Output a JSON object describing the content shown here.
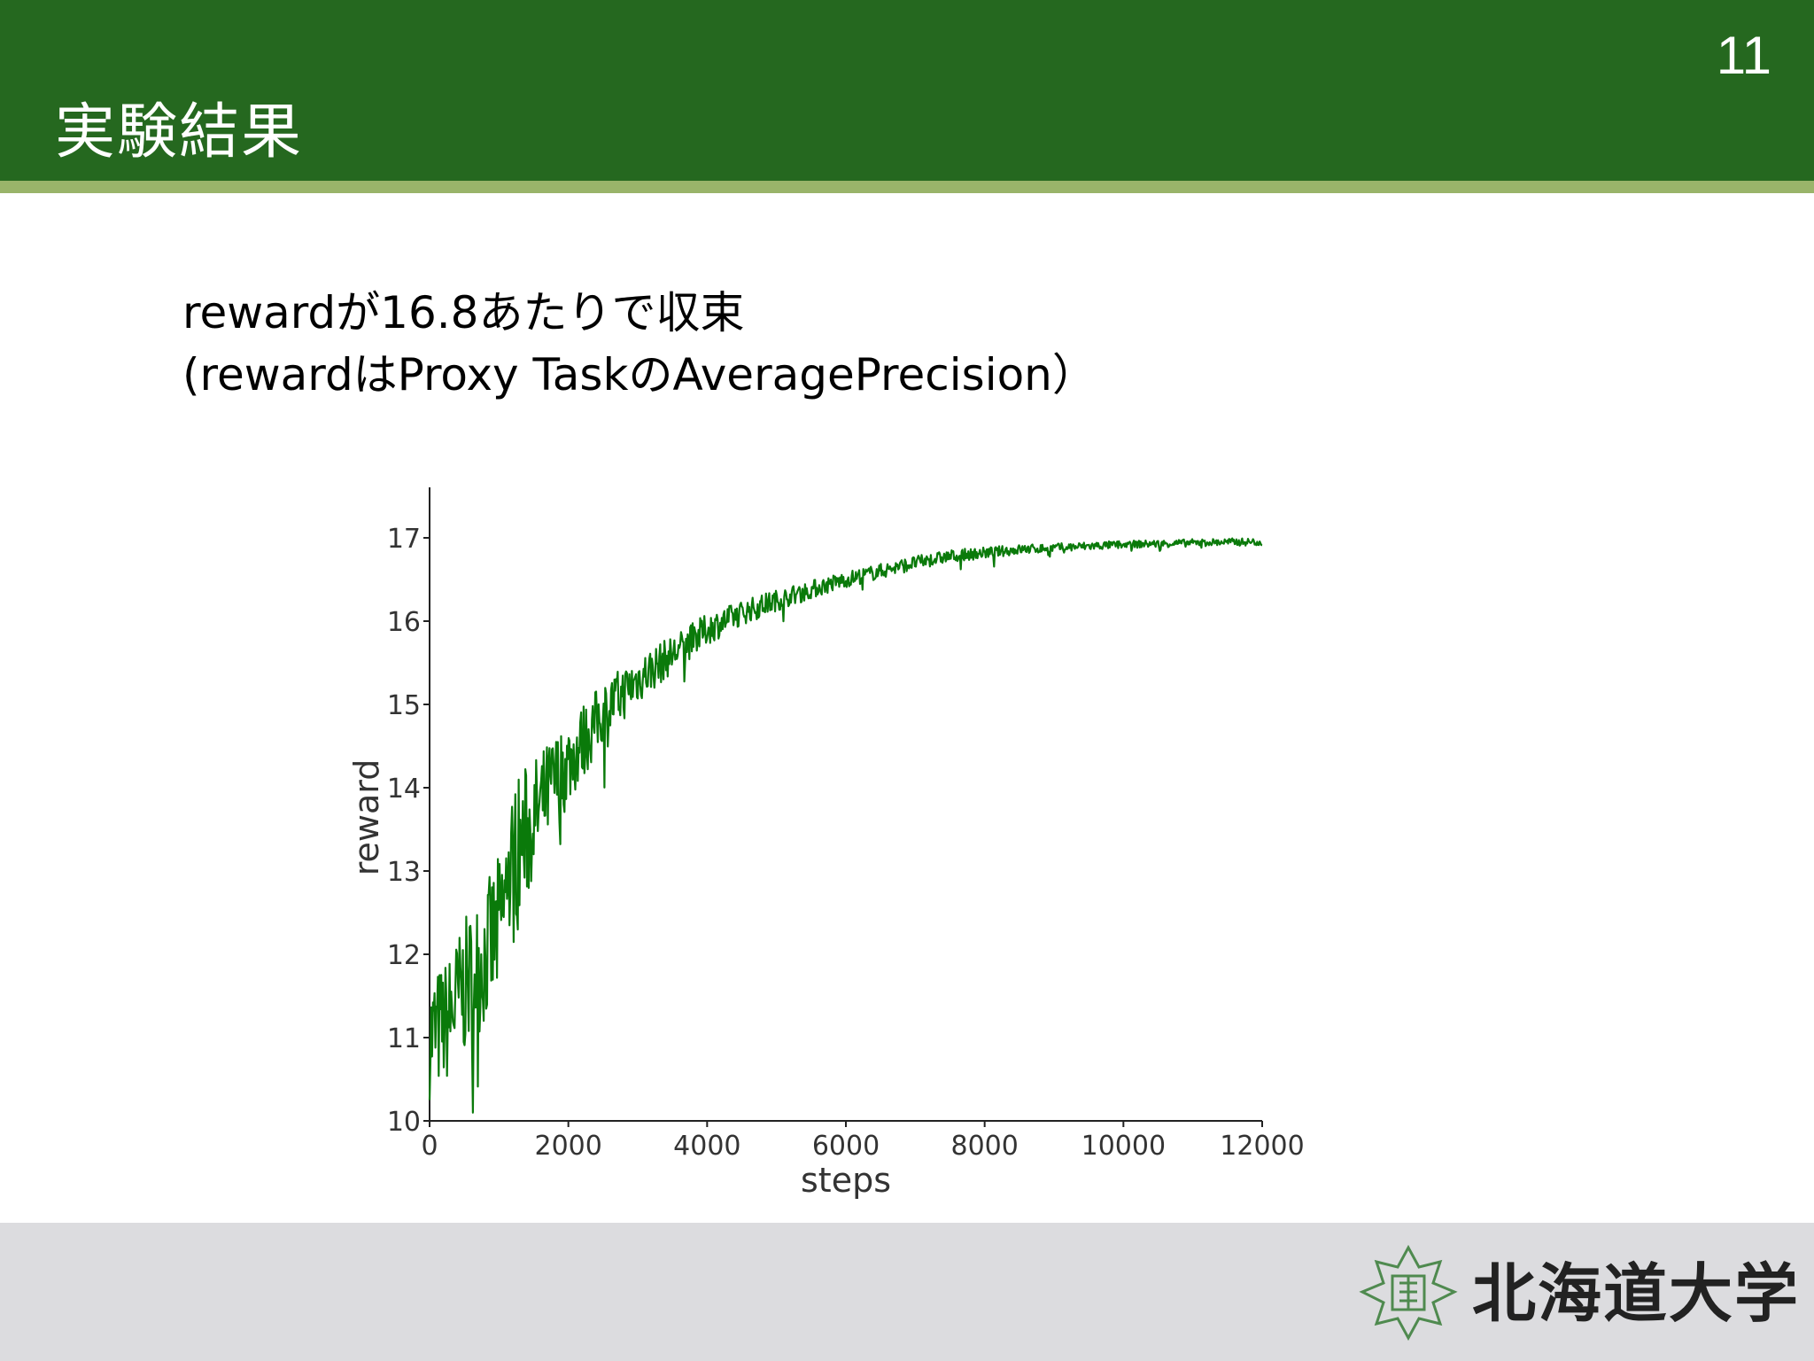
{
  "slide": {
    "title": "実験結果",
    "page_number": "11",
    "body_lines": [
      "rewardが16.8あたりで収束",
      "(rewardはProxy TaskのAveragePrecision）"
    ]
  },
  "footer": {
    "logo_text": "北海道大学"
  },
  "colors": {
    "header": "#25681f",
    "header_stripe": "#99b46a",
    "footer": "#dcdcdf",
    "series": "#0a7a0a"
  },
  "chart_data": {
    "type": "line",
    "xlabel": "steps",
    "ylabel": "reward",
    "xlim": [
      0,
      12000
    ],
    "ylim": [
      10,
      17.5
    ],
    "xticks": [
      0,
      2000,
      4000,
      6000,
      8000,
      10000,
      12000
    ],
    "xtick_labels": [
      "0",
      "2000",
      "4000",
      "6000",
      "8000",
      "10000",
      "12000"
    ],
    "yticks": [
      10,
      11,
      12,
      13,
      14,
      15,
      16,
      17
    ],
    "ytick_labels": [
      "10",
      "11",
      "12",
      "13",
      "14",
      "15",
      "16",
      "17"
    ],
    "grid": false,
    "series": [
      {
        "x": [
          0,
          250,
          500,
          750,
          1000,
          1250,
          1500,
          1750,
          2000,
          2250,
          2500,
          2750,
          3000,
          3250,
          3500,
          3750,
          4000,
          4500,
          5000,
          5500,
          6000,
          6500,
          7000,
          7500,
          8000,
          8500,
          9000,
          9500,
          10000,
          10500,
          11000,
          11500,
          12000
        ],
        "values": [
          11.0,
          11.2,
          11.6,
          11.9,
          12.3,
          13.2,
          13.6,
          14.0,
          14.3,
          14.6,
          14.9,
          15.1,
          15.3,
          15.45,
          15.6,
          15.75,
          15.9,
          16.1,
          16.25,
          16.38,
          16.5,
          16.6,
          16.7,
          16.78,
          16.82,
          16.86,
          16.88,
          16.9,
          16.92,
          16.93,
          16.94,
          16.95,
          16.95
        ]
      }
    ],
    "noise_amplitude": [
      1.0,
      1.0,
      1.1,
      1.1,
      1.2,
      1.3,
      1.0,
      0.8,
      0.7,
      0.6,
      0.5,
      0.45,
      0.4,
      0.35,
      0.3,
      0.28,
      0.25,
      0.2,
      0.17,
      0.15,
      0.13,
      0.12,
      0.11,
      0.1,
      0.09,
      0.08,
      0.07,
      0.07,
      0.06,
      0.06,
      0.06,
      0.06,
      0.06
    ]
  }
}
